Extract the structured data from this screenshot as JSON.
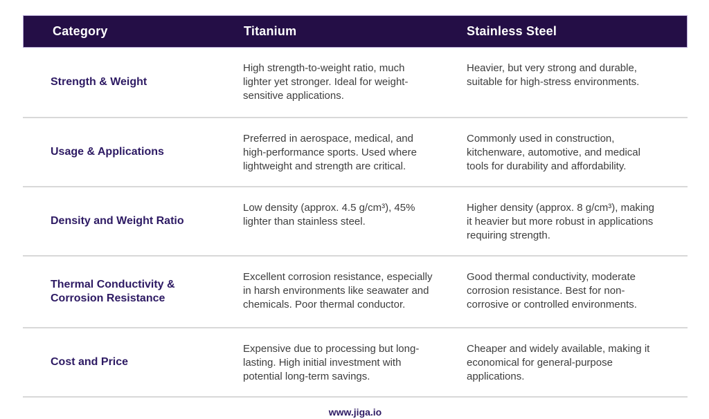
{
  "table": {
    "headers": [
      {
        "label": "Category"
      },
      {
        "label": "Titanium"
      },
      {
        "label": "Stainless Steel"
      }
    ],
    "rows": [
      {
        "category": "Strength & Weight",
        "titanium": "High strength-to-weight ratio, much lighter yet stronger. Ideal for weight-sensitive applications.",
        "stainless": "Heavier, but very strong and durable, suitable for high-stress environments."
      },
      {
        "category": "Usage & Applications",
        "titanium": "Preferred in aerospace, medical, and high-performance sports. Used where lightweight and strength are critical.",
        "stainless": "Commonly used in construction, kitchenware, automotive, and medical tools for durability and affordability."
      },
      {
        "category": "Density and Weight Ratio",
        "titanium": "Low density (approx. 4.5 g/cm³), 45% lighter than stainless steel.",
        "stainless": "Higher density (approx. 8 g/cm³), making it heavier but more robust in applications requiring strength."
      },
      {
        "category": "Thermal Conductivity & Corrosion Resistance",
        "titanium": "Excellent corrosion resistance, especially in harsh environments like seawater and chemicals. Poor thermal conductor.",
        "stainless": "Good thermal conductivity, moderate corrosion resistance. Best for non-corrosive or controlled environments."
      },
      {
        "category": "Cost and Price",
        "titanium": "Expensive due to processing but long-lasting. High initial investment with potential long-term savings.",
        "stainless": "Cheaper and widely available, making it economical for general-purpose applications."
      }
    ]
  },
  "footer": {
    "url": "www.jiga.io"
  },
  "colors": {
    "header_background": "#240e46",
    "header_text": "#ffffff",
    "category_text": "#2d1a63",
    "body_text": "#3d3d3d",
    "divider": "#d8d8d8",
    "footer_text": "#2d1a63",
    "page_background": "#ffffff"
  }
}
